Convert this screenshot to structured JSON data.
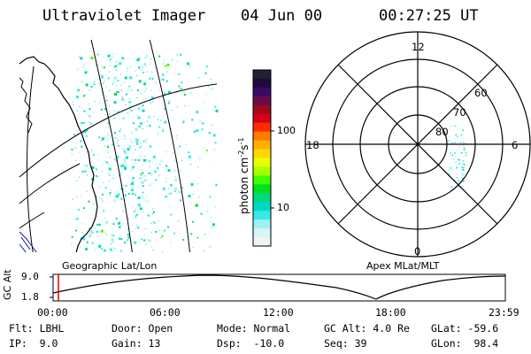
{
  "header": {
    "title": "Ultraviolet Imager",
    "date": "04 Jun 00",
    "time": "00:27:25 UT"
  },
  "colorbar": {
    "label_main": "photon cm",
    "label_exp1": "-2",
    "label_mid": "s",
    "label_exp2": "-1",
    "ticks": [
      "100",
      "10"
    ],
    "colors": [
      "#222034",
      "#1e0a3c",
      "#3a0a6a",
      "#6a0a4a",
      "#a00a1a",
      "#d4001c",
      "#ff2a00",
      "#ff7a00",
      "#ffb000",
      "#ffd800",
      "#e8ff00",
      "#a8ff00",
      "#44ff00",
      "#00e020",
      "#00d880",
      "#00d8c0",
      "#38e8e8",
      "#a0f0f0",
      "#d8f4f4",
      "#eef4f4"
    ]
  },
  "left_panel": {
    "caption": "Geographic Lat/Lon"
  },
  "polar_panel": {
    "caption": "Apex MLat/MLT",
    "mlt_labels": {
      "top": "12",
      "left": "18",
      "right": "6",
      "bottom": "0"
    },
    "lat_labels": [
      "60",
      "70",
      "80"
    ]
  },
  "altitude_plot": {
    "axis_title": "GC Alt",
    "y_ticks": [
      "9.0",
      "1.8"
    ],
    "x_ticks": [
      "00:00",
      "06:00",
      "12:00",
      "18:00",
      "23:59"
    ],
    "marker_time": "00:27",
    "colors": {
      "marker": "#e00000"
    }
  },
  "info": {
    "row1": [
      {
        "key": "Flt: LBHL"
      },
      {
        "key": "Door: Open"
      },
      {
        "key": "Mode: Normal"
      },
      {
        "key": "GC Alt: 4.0 Re"
      },
      {
        "key": "GLat: -59.6"
      }
    ],
    "row2": [
      {
        "key": "IP:  9.0"
      },
      {
        "key": "Gain: 13"
      },
      {
        "key": "Dsp:  -10.0"
      },
      {
        "key": "Seq: 39"
      },
      {
        "key": "GLon:  98.4"
      }
    ]
  }
}
